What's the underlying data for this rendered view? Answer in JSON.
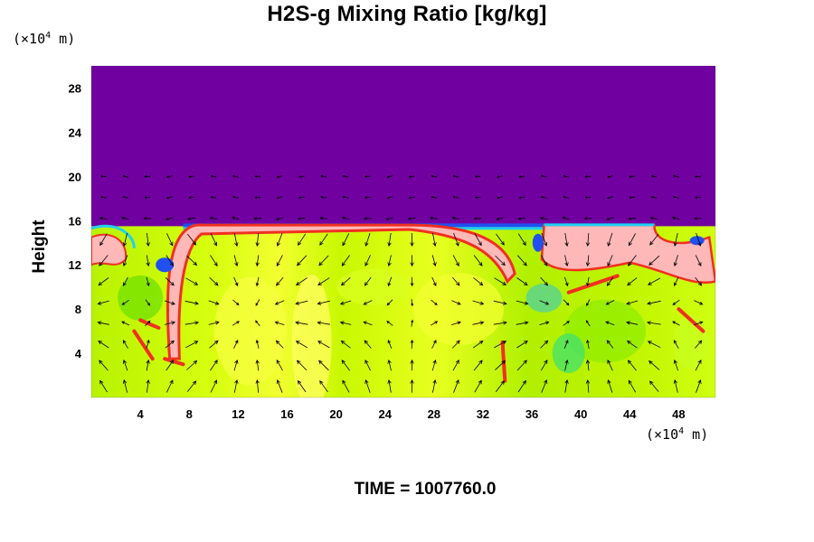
{
  "chart_data": {
    "type": "heatmap",
    "title": "H2S-g Mixing Ratio [kg/kg]",
    "ylabel": "Height",
    "xlabel": "",
    "x_unit_label": "(×10",
    "x_unit_exp": "4",
    "x_unit_suffix": " m)",
    "y_unit_label": "(×10",
    "y_unit_exp": "4",
    "y_unit_suffix": " m)",
    "xlim": [
      0,
      51
    ],
    "ylim": [
      0,
      30
    ],
    "x_ticks": [
      4,
      8,
      12,
      16,
      20,
      24,
      28,
      32,
      36,
      40,
      44,
      48
    ],
    "y_ticks": [
      4,
      8,
      12,
      16,
      20,
      24,
      28
    ],
    "x_tick_labels": [
      "4",
      "8",
      "12",
      "16",
      "20",
      "24",
      "28",
      "32",
      "36",
      "40",
      "44",
      "48"
    ],
    "y_tick_labels": [
      "4",
      "8",
      "12",
      "16",
      "20",
      "24",
      "28"
    ],
    "colors": {
      "background_upper": "#7000a0",
      "cloud_core": "#ffb8b8",
      "field_green": "#a8f000",
      "field_yellow": "#e8ff20",
      "edge_red": "#f03020",
      "edge_blue": "#2050f0",
      "edge_cyan": "#20d0f0",
      "vector": "#000000"
    },
    "cloud_top_height": 15.5,
    "vector_field": true,
    "time_label": "TIME = 1007760.0"
  }
}
